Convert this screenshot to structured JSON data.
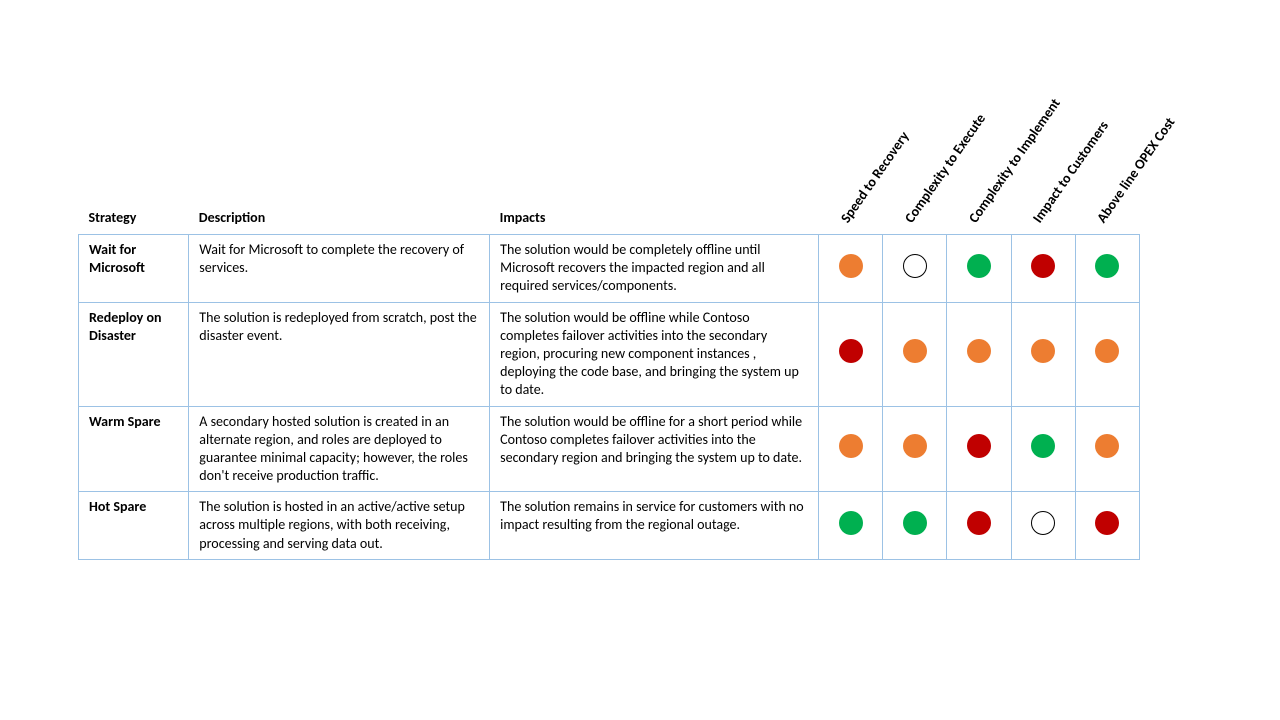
{
  "colors": {
    "green": "#00b050",
    "orange": "#ed7d31",
    "red": "#c00000",
    "white": "#ffffff",
    "border": "#9cc2e5",
    "circleBorder": "#000000"
  },
  "headers": {
    "strategy": "Strategy",
    "description": "Description",
    "impacts": "Impacts"
  },
  "indicatorHeaders": [
    "Speed to Recovery",
    "Complexity to Execute",
    "Complexity to Implement",
    "Impact to Customers",
    "Above line OPEX Cost"
  ],
  "rows": [
    {
      "strategy": "Wait for Microsoft",
      "description": "Wait for Microsoft to complete the recovery of services.",
      "impacts": "The solution would be completely offline until Microsoft recovers the impacted region and all required services/components.",
      "indicators": [
        "orange",
        "white",
        "green",
        "red",
        "green"
      ]
    },
    {
      "strategy": "Redeploy on Disaster",
      "description": "The solution is redeployed from scratch, post the disaster event.",
      "impacts": "The solution would be offline while Contoso completes failover activities into the secondary region, procuring new component instances , deploying the code base, and bringing the system up to date.",
      "indicators": [
        "red",
        "orange",
        "orange",
        "orange",
        "orange"
      ]
    },
    {
      "strategy": "Warm Spare",
      "description": "A secondary hosted solution is created in an alternate region, and roles are deployed to guarantee minimal capacity; however, the roles don't receive production traffic.",
      "impacts": "The solution would be offline for a short period while Contoso completes failover activities into the secondary region and bringing the system up to date.",
      "indicators": [
        "orange",
        "orange",
        "red",
        "green",
        "orange"
      ]
    },
    {
      "strategy": "Hot Spare",
      "description": "The solution is hosted in an active/active setup across multiple regions, with both receiving, processing and serving data out.",
      "impacts": "The solution remains in service for customers with no impact resulting from the regional outage.",
      "indicators": [
        "green",
        "green",
        "red",
        "white",
        "red"
      ]
    }
  ]
}
